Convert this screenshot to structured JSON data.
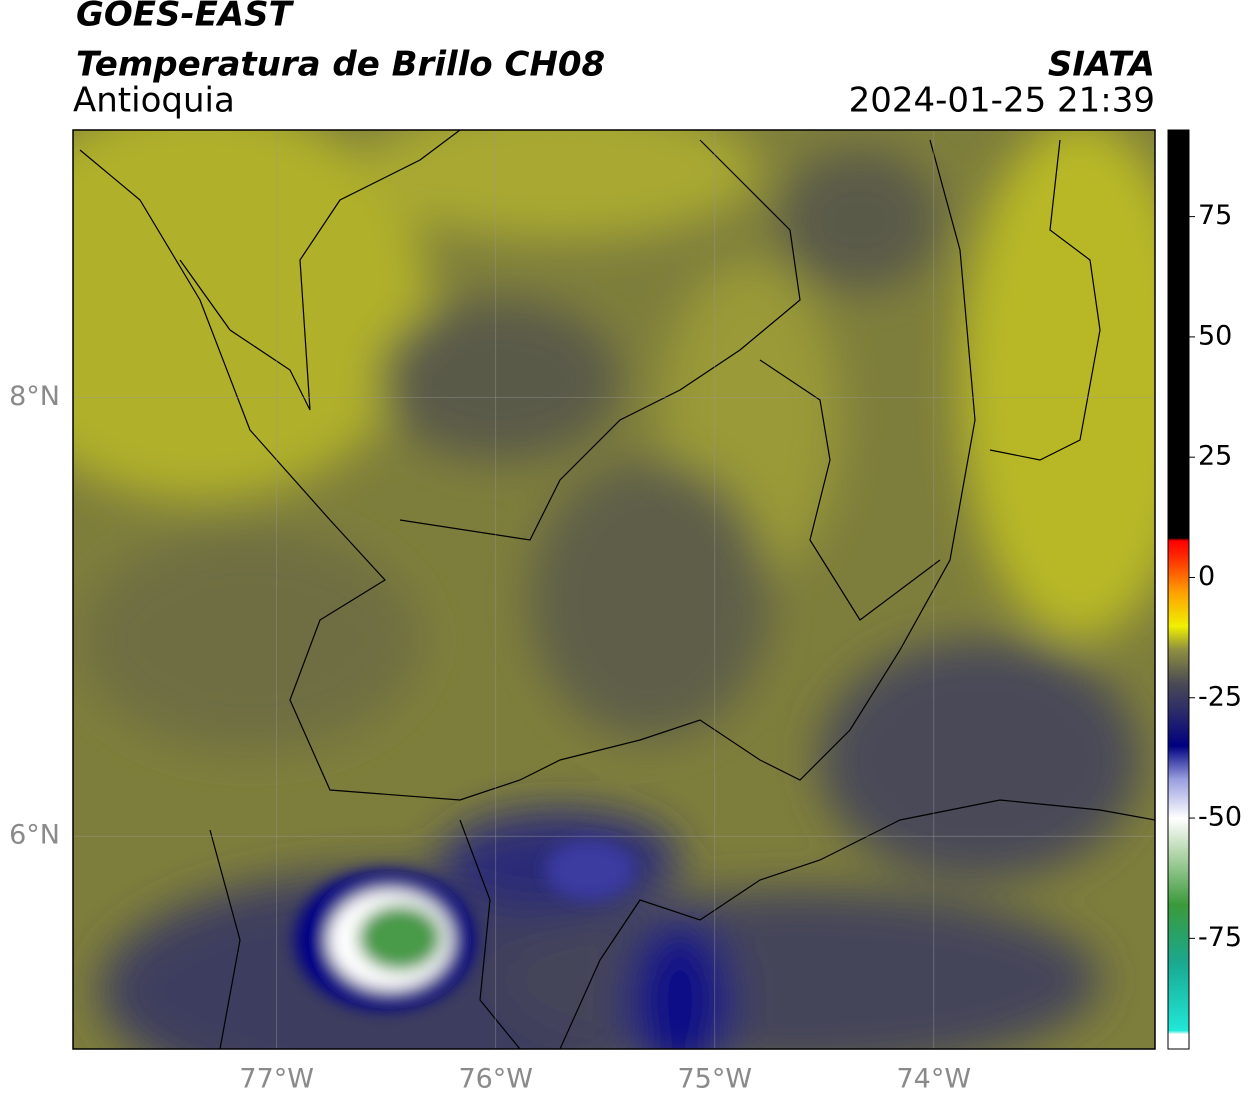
{
  "header": {
    "satellite": "GOES-EAST",
    "product": "Temperatura de Brillo CH08",
    "region": "Antioquia",
    "agency": "SIATA",
    "datetime": "2024-01-25 21:39"
  },
  "map": {
    "lonlim": [
      -77.93,
      -72.99
    ],
    "latlim": [
      5.03,
      9.22
    ],
    "lonticks": [
      {
        "value": -77,
        "label": "77°W"
      },
      {
        "value": -76,
        "label": "76°W"
      },
      {
        "value": -75,
        "label": "75°W"
      },
      {
        "value": -74,
        "label": "74°W"
      }
    ],
    "latticks": [
      {
        "value": 8,
        "label": "8°N"
      },
      {
        "value": 6,
        "label": "6°N"
      }
    ]
  },
  "colorbar": {
    "lim": [
      -98,
      93
    ],
    "ticks": [
      75,
      50,
      25,
      0,
      -25,
      -50,
      -75
    ]
  }
}
